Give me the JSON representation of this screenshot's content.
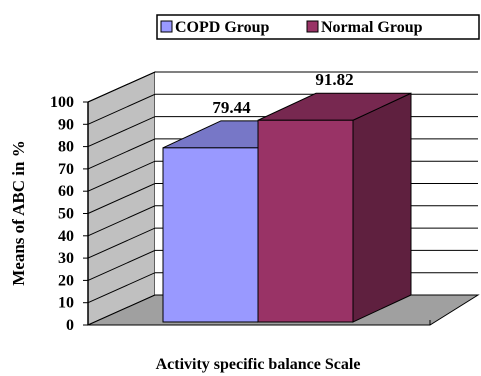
{
  "chart_data": {
    "type": "bar",
    "categories": [
      "Activity specific balance Scale"
    ],
    "series": [
      {
        "name": "COPD Group",
        "values": [
          79.44
        ],
        "color": "#9999ff"
      },
      {
        "name": "Normal Group",
        "values": [
          91.82
        ],
        "color": "#993366"
      }
    ],
    "data_labels": [
      "79.44",
      "91.82"
    ],
    "title": "",
    "xlabel": "Activity specific balance Scale",
    "ylabel": "Means of ABC in %",
    "ylim": [
      0,
      100
    ],
    "yticks": [
      0,
      10,
      20,
      30,
      40,
      50,
      60,
      70,
      80,
      90,
      100
    ],
    "grid": true,
    "style": "3d",
    "legend_position": "top"
  }
}
